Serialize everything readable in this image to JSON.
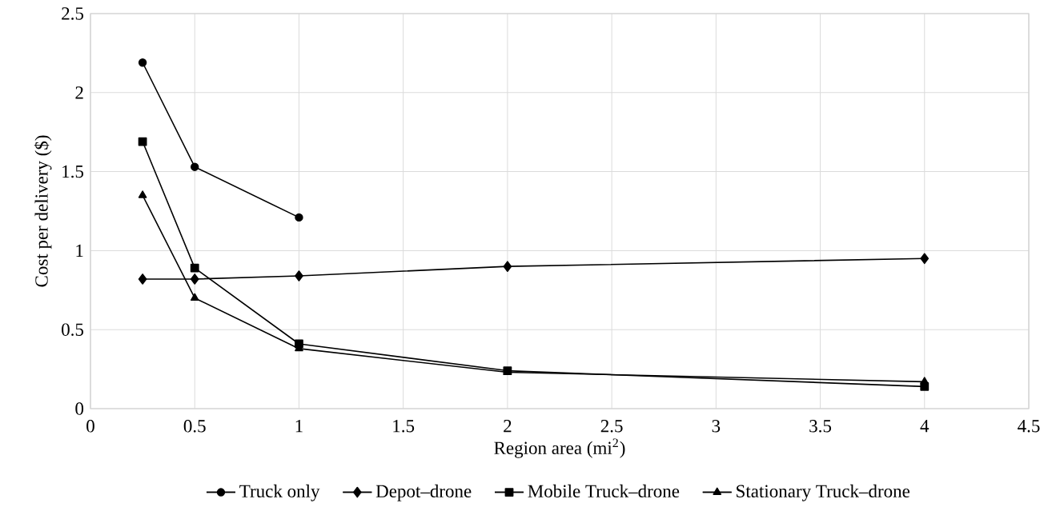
{
  "chart_data": {
    "type": "line",
    "xlabel": "Region area (mi$^{2}$)",
    "ylabel": "Cost per delivery ($)",
    "x": [
      0.25,
      0.5,
      1,
      2,
      4
    ],
    "series": [
      {
        "name": "Truck only",
        "color": "#000000",
        "marker": "circle",
        "values": [
          2.19,
          1.53,
          1.21,
          null,
          null
        ]
      },
      {
        "name": "Depot–drone",
        "color": "#000000",
        "marker": "diamond",
        "values": [
          0.82,
          0.82,
          0.84,
          0.9,
          0.95
        ]
      },
      {
        "name": "Mobile Truck–drone",
        "color": "#000000",
        "marker": "square",
        "values": [
          1.69,
          0.89,
          0.41,
          0.24,
          0.14
        ]
      },
      {
        "name": "Stationary Truck–drone",
        "color": "#000000",
        "marker": "triangle",
        "values": [
          1.35,
          0.7,
          0.38,
          0.23,
          0.17
        ]
      }
    ],
    "xlim": [
      0,
      4.5
    ],
    "ylim": [
      0,
      2.5
    ],
    "xticks": [
      0,
      0.5,
      1,
      1.5,
      2,
      2.5,
      3,
      3.5,
      4,
      4.5
    ],
    "yticks": [
      0,
      0.5,
      1,
      1.5,
      2,
      2.5
    ],
    "grid": true,
    "legend": "bottom",
    "line_style": "solid"
  }
}
